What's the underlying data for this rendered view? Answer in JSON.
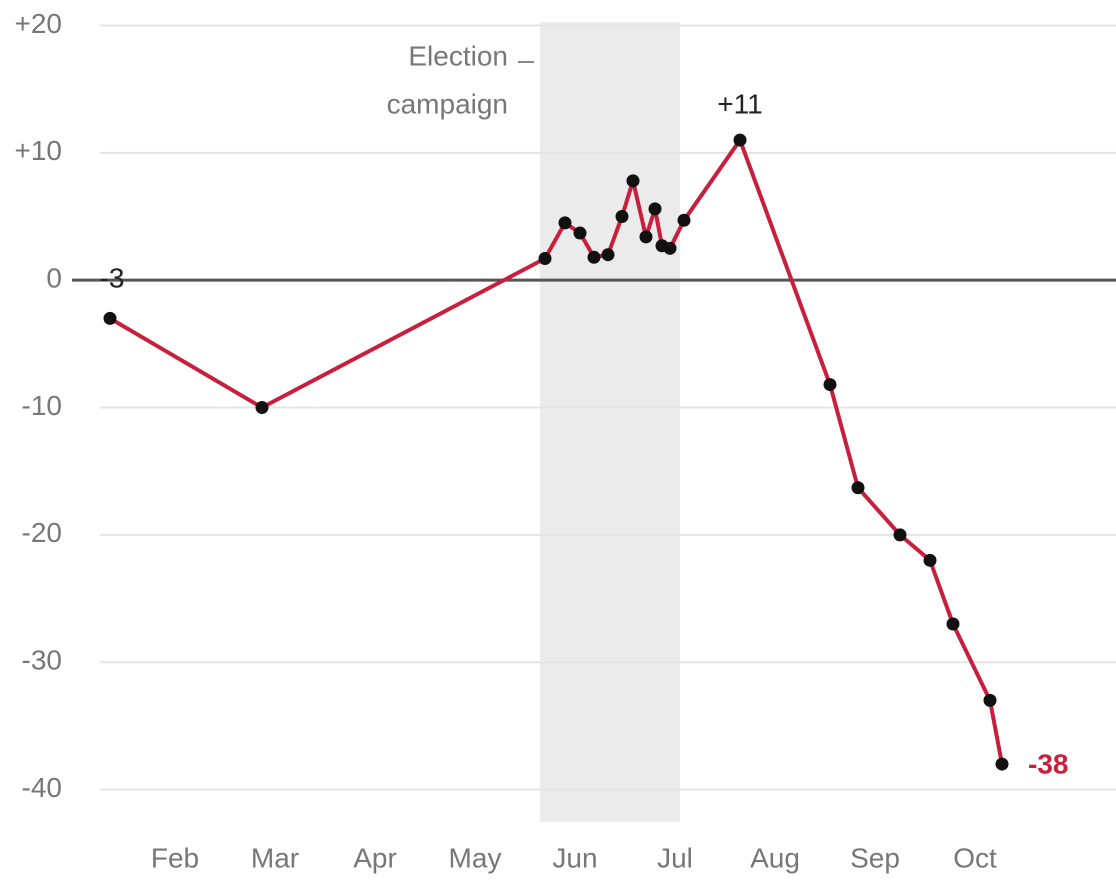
{
  "chart_data": {
    "type": "line",
    "x": [
      1.35,
      2.87,
      5.7,
      5.9,
      6.05,
      6.19,
      6.33,
      6.47,
      6.58,
      6.71,
      6.8,
      6.87,
      6.95,
      7.09,
      7.65,
      8.55,
      8.83,
      9.25,
      9.55,
      9.78,
      10.15,
      10.27
    ],
    "series": [
      {
        "color": "#c8203c",
        "values": [
          -3,
          -10,
          1.7,
          4.5,
          3.7,
          1.8,
          2,
          5,
          7.8,
          3.4,
          5.6,
          2.7,
          2.5,
          4.7,
          11,
          -8.2,
          -16.3,
          -20,
          -22,
          -27,
          -33,
          -38
        ],
        "value_labels": [
          "-3",
          null,
          null,
          null,
          null,
          null,
          null,
          null,
          null,
          null,
          null,
          null,
          null,
          null,
          "+11",
          null,
          null,
          null,
          null,
          null,
          null,
          "-38"
        ]
      }
    ],
    "xlim": [
      0.25,
      11.41
    ],
    "xticks": [
      {
        "value": 2,
        "label": "Feb"
      },
      {
        "value": 3,
        "label": "Mar"
      },
      {
        "value": 4,
        "label": "Apr"
      },
      {
        "value": 5,
        "label": "May"
      },
      {
        "value": 6,
        "label": "Jun"
      },
      {
        "value": 7,
        "label": "Jul"
      },
      {
        "value": 8,
        "label": "Aug"
      },
      {
        "value": 9,
        "label": "Sep"
      },
      {
        "value": 10,
        "label": "Oct"
      }
    ],
    "ylim": [
      -42,
      22
    ],
    "yticks": [
      {
        "value": 20,
        "label": "+20"
      },
      {
        "value": 10,
        "label": "+10"
      },
      0,
      -10,
      -20,
      -30,
      -40
    ],
    "grid": true,
    "highlight": {
      "x": [
        5.65,
        7.05
      ],
      "label": [
        "Election",
        "campaign"
      ]
    }
  }
}
